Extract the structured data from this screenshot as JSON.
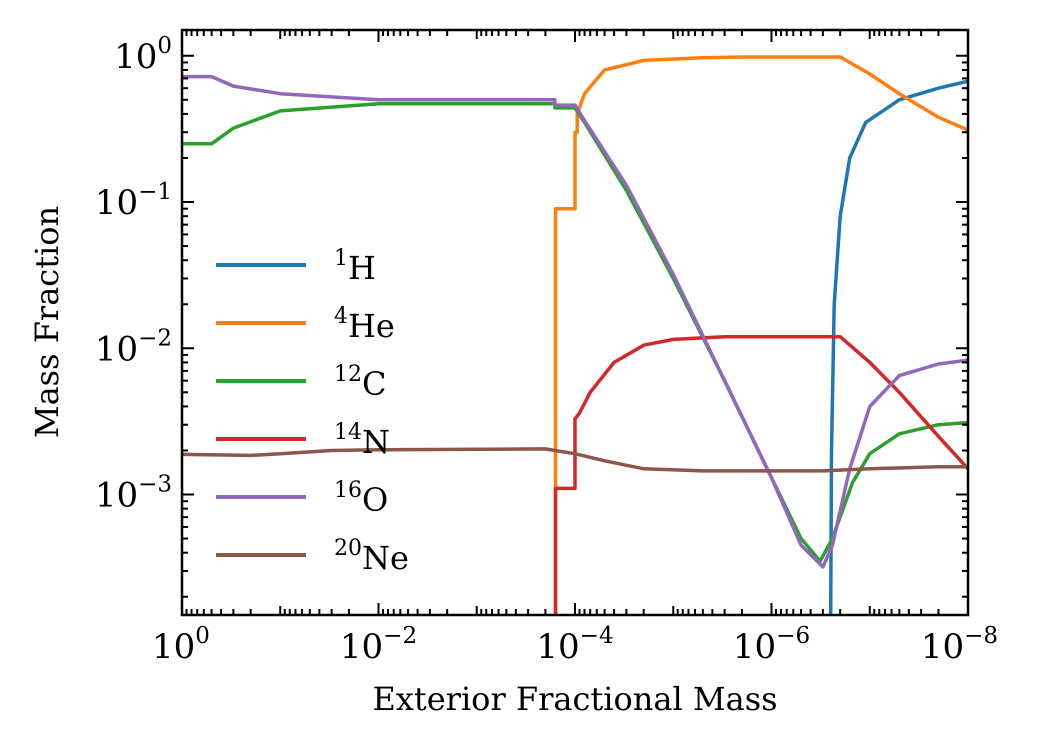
{
  "chart_data": {
    "type": "line",
    "xlabel": "Exterior Fractional Mass",
    "ylabel": "Mass Fraction",
    "x_scale": "log",
    "y_scale": "log",
    "x_reversed": true,
    "xlim": [
      1,
      1e-08
    ],
    "ylim": [
      0.00015,
      1.5
    ],
    "grid": false,
    "legend_position": "center-left",
    "x_ticks": [
      {
        "base": "10",
        "exp": "0",
        "value": 1
      },
      {
        "base": "10",
        "exp": "−2",
        "value": 0.01
      },
      {
        "base": "10",
        "exp": "−4",
        "value": 0.0001
      },
      {
        "base": "10",
        "exp": "−6",
        "value": 1e-06
      },
      {
        "base": "10",
        "exp": "−8",
        "value": 1e-08
      }
    ],
    "y_ticks": [
      {
        "base": "10",
        "exp": "0",
        "value": 1
      },
      {
        "base": "10",
        "exp": "−1",
        "value": 0.1
      },
      {
        "base": "10",
        "exp": "−2",
        "value": 0.01
      },
      {
        "base": "10",
        "exp": "−3",
        "value": 0.001
      }
    ],
    "series": [
      {
        "name": "H",
        "sup": "1",
        "color": "#1f77b4",
        "points": [
          [
            2.5e-07,
            0.00015
          ],
          [
            2.45e-07,
            0.002
          ],
          [
            2.3e-07,
            0.02
          ],
          [
            2e-07,
            0.08
          ],
          [
            1.6e-07,
            0.2
          ],
          [
            1.1e-07,
            0.35
          ],
          [
            5e-08,
            0.5
          ],
          [
            2e-08,
            0.6
          ],
          [
            1e-08,
            0.67
          ]
        ]
      },
      {
        "name": "He",
        "sup": "4",
        "color": "#ff7f0e",
        "points": [
          [
            0.000158,
            0.00015
          ],
          [
            0.000158,
            0.09
          ],
          [
            0.0001,
            0.09
          ],
          [
            0.0001,
            0.3
          ],
          [
            9.5e-05,
            0.3
          ],
          [
            9.5e-05,
            0.4
          ],
          [
            8e-05,
            0.55
          ],
          [
            5e-05,
            0.8
          ],
          [
            2e-05,
            0.93
          ],
          [
            5e-06,
            0.97
          ],
          [
            2e-06,
            0.98
          ],
          [
            5e-07,
            0.98
          ],
          [
            2e-07,
            0.98
          ],
          [
            1e-07,
            0.75
          ],
          [
            5e-08,
            0.55
          ],
          [
            2e-08,
            0.38
          ],
          [
            1e-08,
            0.31
          ]
        ]
      },
      {
        "name": "C",
        "sup": "12",
        "color": "#2ca02c",
        "points": [
          [
            1,
            0.25
          ],
          [
            0.5,
            0.25
          ],
          [
            0.3,
            0.32
          ],
          [
            0.1,
            0.42
          ],
          [
            0.01,
            0.47
          ],
          [
            0.0002,
            0.47
          ],
          [
            0.00016,
            0.47
          ],
          [
            0.00016,
            0.44
          ],
          [
            0.0001,
            0.44
          ],
          [
            8e-05,
            0.35
          ],
          [
            3e-05,
            0.12
          ],
          [
            1e-05,
            0.03
          ],
          [
            3e-06,
            0.006
          ],
          [
            1e-06,
            0.0013
          ],
          [
            5e-07,
            0.0005
          ],
          [
            3.2e-07,
            0.00035
          ],
          [
            2.4e-07,
            0.0005
          ],
          [
            1.5e-07,
            0.0012
          ],
          [
            1e-07,
            0.0019
          ],
          [
            5e-08,
            0.0026
          ],
          [
            2e-08,
            0.003
          ],
          [
            1e-08,
            0.0031
          ]
        ]
      },
      {
        "name": "N",
        "sup": "14",
        "color": "#d62728",
        "points": [
          [
            0.000158,
            0.00015
          ],
          [
            0.000158,
            0.0011
          ],
          [
            0.0001,
            0.0011
          ],
          [
            0.0001,
            0.0033
          ],
          [
            9e-05,
            0.0036
          ],
          [
            7e-05,
            0.005
          ],
          [
            4e-05,
            0.008
          ],
          [
            2e-05,
            0.0105
          ],
          [
            1e-05,
            0.0115
          ],
          [
            3e-06,
            0.012
          ],
          [
            1e-06,
            0.012
          ],
          [
            2e-07,
            0.012
          ],
          [
            1e-07,
            0.008
          ],
          [
            5e-08,
            0.005
          ],
          [
            2e-08,
            0.0025
          ],
          [
            1e-08,
            0.0015
          ]
        ]
      },
      {
        "name": "O",
        "sup": "16",
        "color": "#9467bd",
        "points": [
          [
            1,
            0.72
          ],
          [
            0.5,
            0.72
          ],
          [
            0.3,
            0.62
          ],
          [
            0.1,
            0.55
          ],
          [
            0.01,
            0.5
          ],
          [
            0.0002,
            0.5
          ],
          [
            0.00016,
            0.5
          ],
          [
            0.00016,
            0.46
          ],
          [
            0.0001,
            0.46
          ],
          [
            8e-05,
            0.36
          ],
          [
            3e-05,
            0.13
          ],
          [
            1e-05,
            0.032
          ],
          [
            3e-06,
            0.006
          ],
          [
            1e-06,
            0.0013
          ],
          [
            5e-07,
            0.00045
          ],
          [
            3e-07,
            0.00032
          ],
          [
            2.4e-07,
            0.00045
          ],
          [
            1.6e-07,
            0.0015
          ],
          [
            1e-07,
            0.004
          ],
          [
            5e-08,
            0.0065
          ],
          [
            2e-08,
            0.0078
          ],
          [
            1e-08,
            0.0083
          ]
        ]
      },
      {
        "name": "Ne",
        "sup": "20",
        "color": "#8c564b",
        "points": [
          [
            1,
            0.00188
          ],
          [
            0.2,
            0.00185
          ],
          [
            0.1,
            0.0019
          ],
          [
            0.03,
            0.002
          ],
          [
            0.01,
            0.00202
          ],
          [
            0.0002,
            0.00205
          ],
          [
            0.00016,
            0.002
          ],
          [
            0.0001,
            0.0019
          ],
          [
            5e-05,
            0.0017
          ],
          [
            2e-05,
            0.0015
          ],
          [
            5e-06,
            0.00145
          ],
          [
            1e-06,
            0.00145
          ],
          [
            3e-07,
            0.00145
          ],
          [
            1e-07,
            0.0015
          ],
          [
            2e-08,
            0.00155
          ],
          [
            1e-08,
            0.00155
          ]
        ]
      }
    ]
  }
}
